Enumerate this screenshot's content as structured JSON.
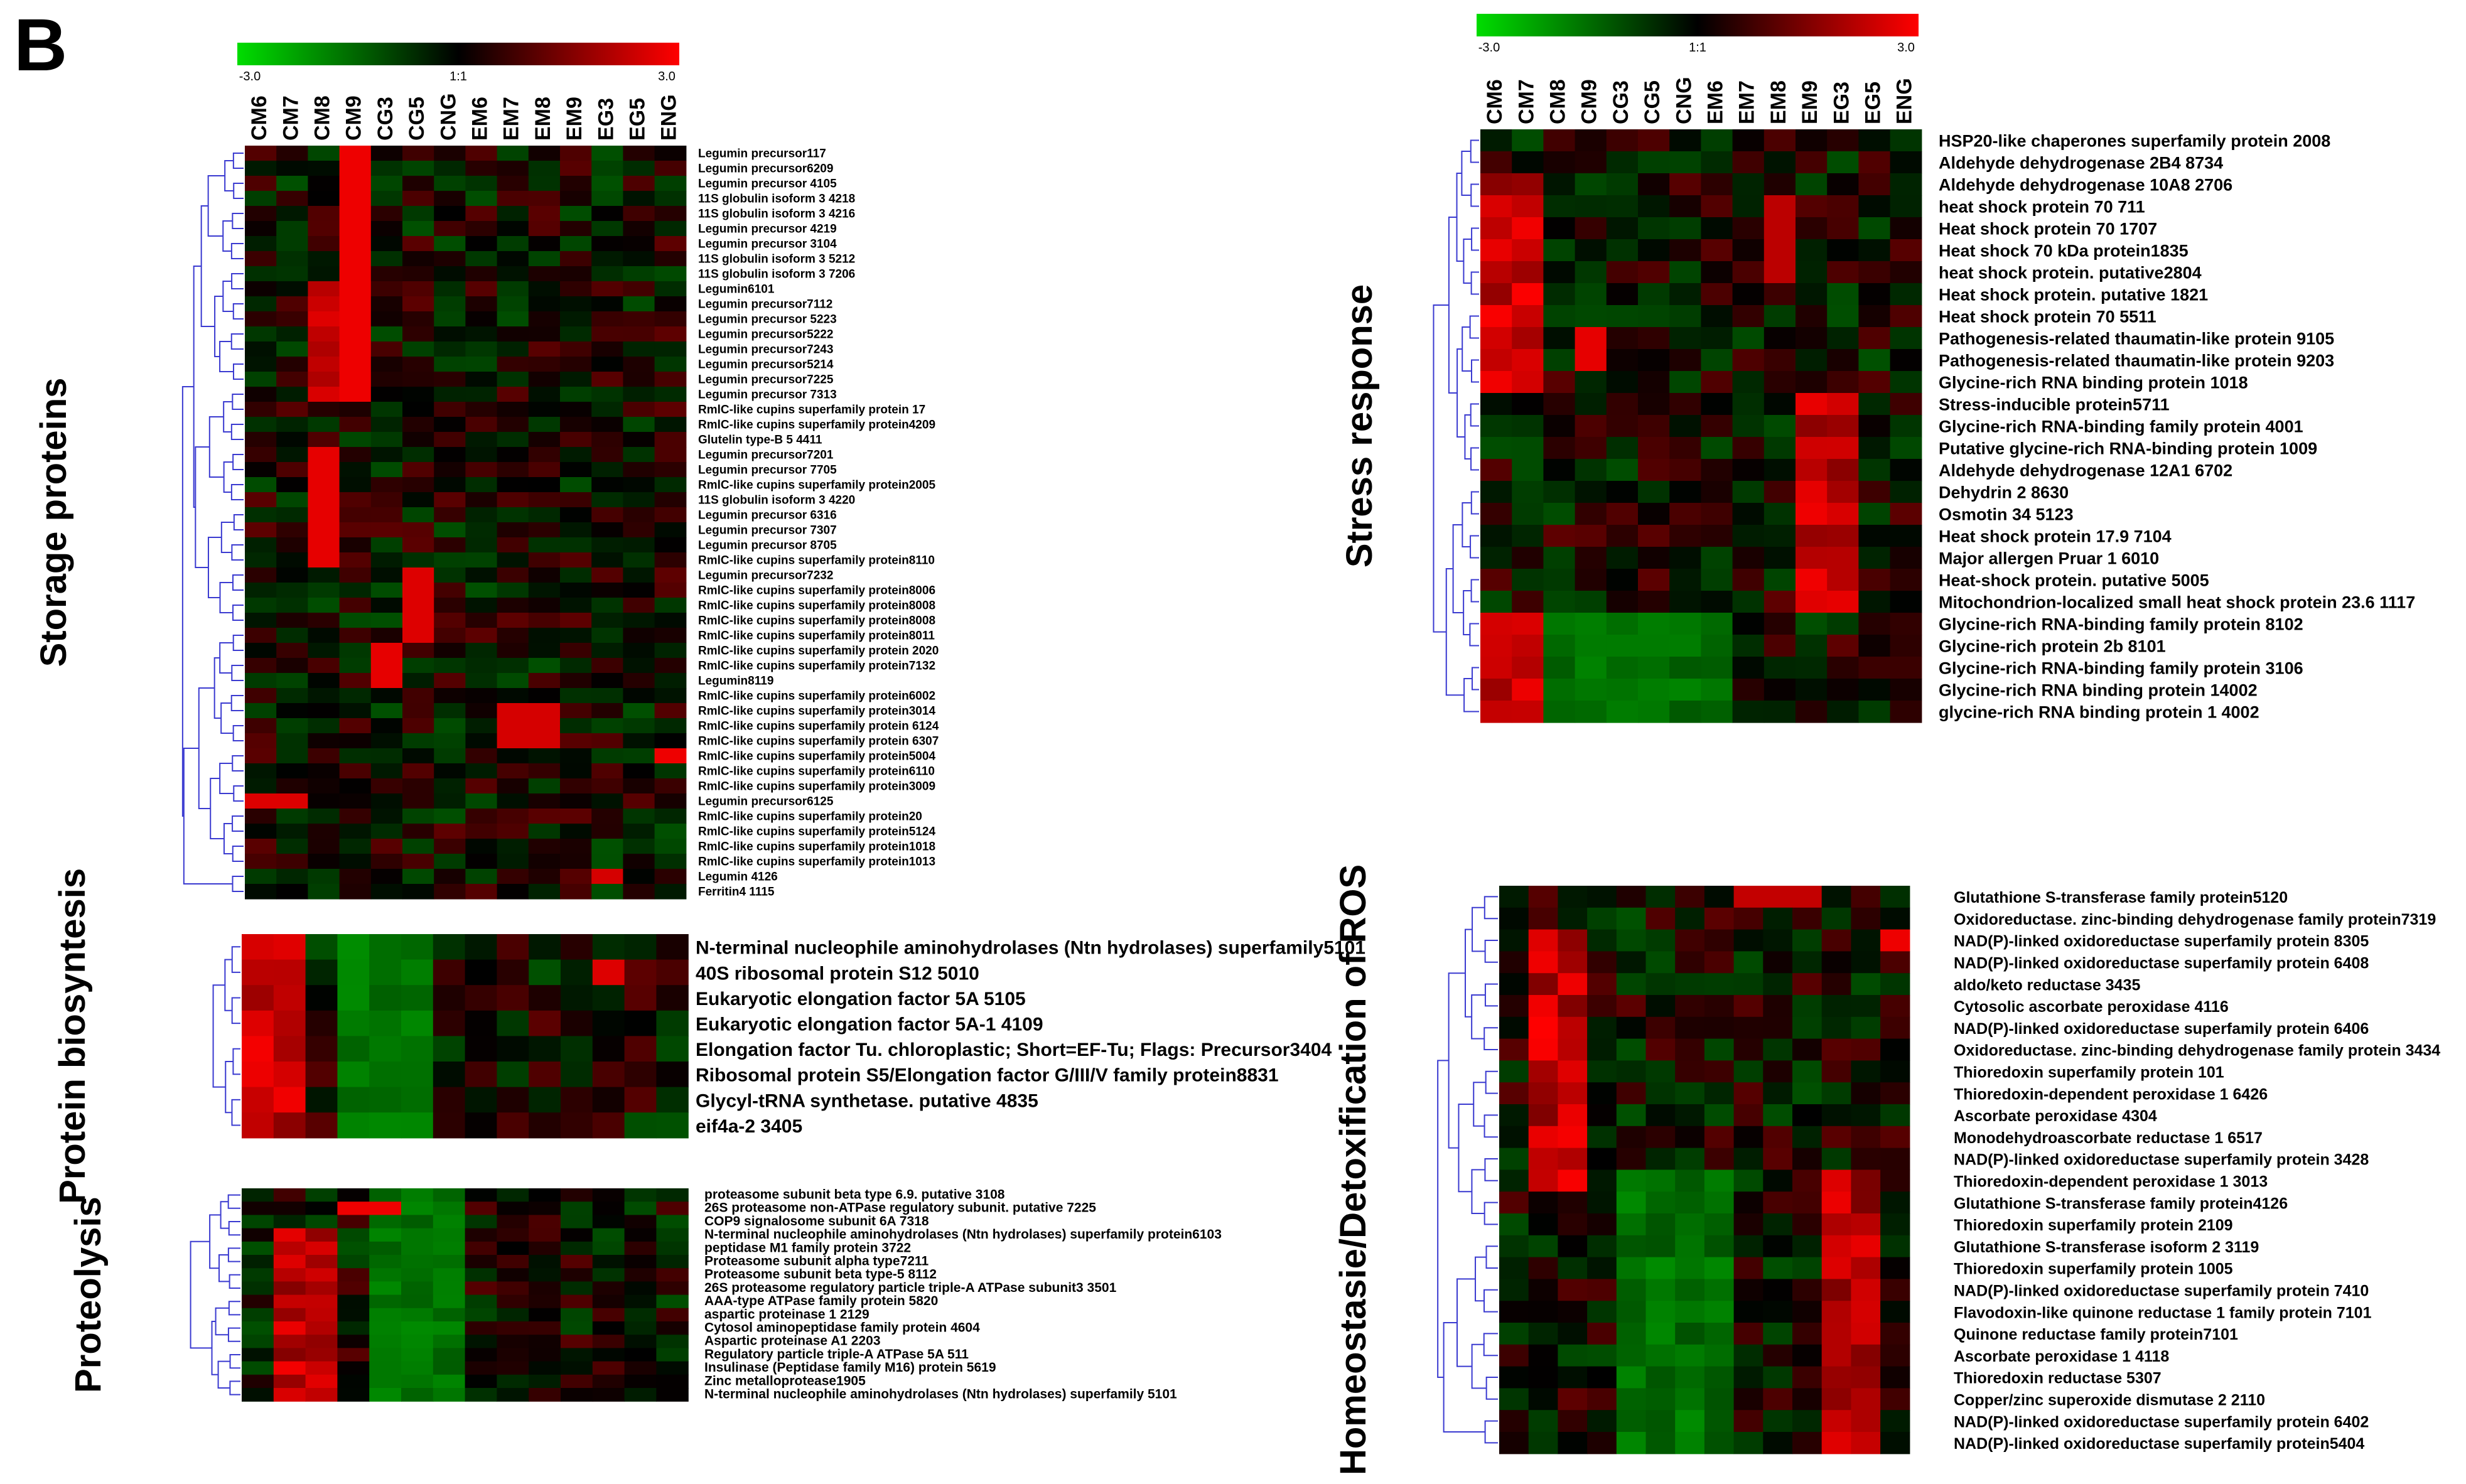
{
  "panel_label": "B",
  "chart_data": {
    "type": "heatmap",
    "colors": {
      "low": "#00dd00",
      "mid": "#000000",
      "high": "#ff0000"
    },
    "color_scale": {
      "min_label": "-3.0",
      "mid_label": "1:1",
      "max_label": "3.0",
      "min": -3.0,
      "max": 3.0
    },
    "conditions": [
      "CM6",
      "CM7",
      "CM8",
      "CM9",
      "CG3",
      "CG5",
      "CNG",
      "EM6",
      "EM7",
      "EM8",
      "EM9",
      "EG3",
      "EG5",
      "ENG"
    ],
    "groups": [
      {
        "name": "Storage proteins",
        "rows": [
          "Legumin precursor117",
          "Legumin precursor6209",
          "Legumin precursor 4105",
          "11S globulin isoform 3 4218",
          "11S globulin isoform 3 4216",
          "Legumin precursor 4219",
          "Legumin precursor 3104",
          "11S globulin isoform 3 5212",
          "11S globulin isoform 3 7206",
          "Legumin6101",
          "Legumin precursor7112",
          "Legumin precursor 5223",
          "Legumin precursor5222",
          "Legumin precursor7243",
          "Legumin precursor5214",
          "Legumin precursor7225",
          "Legumin precursor 7313",
          "RmlC-like cupins superfamily protein 17",
          "RmlC-like cupins superfamily protein4209",
          "Glutelin type-B 5 4411",
          "Legumin precursor7201",
          "Legumin precursor 7705",
          "RmlC-like cupins superfamily protein2005",
          "11S globulin isoform 3 4220",
          "Legumin precursor 6316",
          "Legumin precursor 7307",
          "Legumin precursor 8705",
          "RmlC-like cupins superfamily protein8110",
          "Legumin precursor7232",
          "RmlC-like cupins superfamily protein8006",
          "RmlC-like cupins superfamily protein8008",
          "RmlC-like cupins superfamily protein8008",
          "RmlC-like cupins superfamily protein8011",
          "RmlC-like cupins superfamily protein 2020",
          "RmlC-like cupins superfamily protein7132",
          "Legumin8119",
          "RmlC-like cupins superfamily protein6002",
          "RmlC-like cupins superfamily protein3014",
          "RmlC-like cupins superfamily protein 6124",
          "RmlC-like cupins superfamily protein 6307",
          "RmlC-like cupins superfamily protein5004",
          "RmlC-like cupins superfamily protein6110",
          "RmlC-like cupins superfamily protein3009",
          "Legumin precursor6125",
          "RmlC-like cupins superfamily protein20",
          "RmlC-like cupins superfamily protein5124",
          "RmlC-like cupins superfamily protein1018",
          "RmlC-like cupins superfamily protein1013",
          "Legumin 4126",
          "Ferritin4 1115"
        ]
      },
      {
        "name": "Protein biosyntesis",
        "rows": [
          "N-terminal nucleophile aminohydrolases (Ntn hydrolases) superfamily5101",
          "40S ribosomal protein S12 5010",
          "Eukaryotic elongation factor 5A 5105",
          "Eukaryotic elongation factor 5A-1 4109",
          "Elongation factor Tu. chloroplastic; Short=EF-Tu; Flags: Precursor3404",
          "Ribosomal protein S5/Elongation factor G/III/V family protein8831",
          "Glycyl-tRNA synthetase. putative  4835",
          "eif4a-2  3405"
        ]
      },
      {
        "name": "Proteolysis",
        "rows": [
          "proteasome subunit beta type 6.9. putative 3108",
          "26S proteasome non-ATPase regulatory subunit. putative 7225",
          "COP9 signalosome subunit 6A 7318",
          "N-terminal nucleophile aminohydrolases (Ntn hydrolases) superfamily protein6103",
          "peptidase M1 family protein 3722",
          "Proteasome subunit alpha type7211",
          "Proteasome subunit beta type-5 8112",
          "26S proteasome regulatory particle triple-A ATPase subunit3 3501",
          "AAA-type ATPase family protein 5820",
          "aspartic proteinase 1 2129",
          "Cytosol aminopeptidase family protein 4604",
          "Aspartic proteinase A1 2203",
          "Regulatory particle triple-A ATPase 5A 511",
          "Insulinase (Peptidase family M16) protein 5619",
          "Zinc metalloprotease1905",
          "N-terminal nucleophile aminohydrolases (Ntn hydrolases) superfamily 5101"
        ]
      },
      {
        "name": "Stress response",
        "rows": [
          "HSP20-like chaperones superfamily protein  2008",
          "Aldehyde dehydrogenase 2B4 8734",
          "Aldehyde dehydrogenase 10A8 2706",
          "heat shock protein 70 711",
          "Heat shock protein 70 1707",
          "Heat shock 70 kDa protein1835",
          "heat shock protein. putative2804",
          "Heat shock protein. putative 1821",
          "Heat shock protein 70 5511",
          "Pathogenesis-related thaumatin-like protein 9105",
          "Pathogenesis-related thaumatin-like protein 9203",
          "Glycine-rich RNA binding protein 1018",
          "Stress-inducible protein5711",
          "Glycine-rich RNA-binding family protein 4001",
          "Putative glycine-rich RNA-binding protein 1009",
          "Aldehyde dehydrogenase 12A1 6702",
          "Dehydrin 2 8630",
          "Osmotin 34 5123",
          "Heat shock protein 17.9 7104",
          "Major allergen Pruar 1 6010",
          "Heat-shock protein. putative 5005",
          "Mitochondrion-localized small heat shock protein 23.6 1117",
          "Glycine-rich RNA-binding family protein 8102",
          "Glycine-rich protein 2b 8101",
          "Glycine-rich RNA-binding family protein 3106",
          "Glycine-rich RNA binding protein 14002",
          "glycine-rich RNA binding protein 1 4002"
        ]
      },
      {
        "name": "Homeostasie/Detoxification of ROS",
        "rows": [
          "Glutathione S-transferase family protein5120",
          "Oxidoreductase. zinc-binding dehydrogenase family protein7319",
          "NAD(P)-linked oxidoreductase superfamily protein 8305",
          "NAD(P)-linked oxidoreductase superfamily protein 6408",
          "aldo/keto reductase 3435",
          "Cytosolic ascorbate peroxidase 4116",
          "NAD(P)-linked oxidoreductase superfamily protein 6406",
          "Oxidoreductase. zinc-binding dehydrogenase family protein 3434",
          "Thioredoxin superfamily protein 101",
          "Thioredoxin-dependent peroxidase 1 6426",
          "Ascorbate peroxidase 4304",
          "Monodehydroascorbate reductase 1 6517",
          "NAD(P)-linked oxidoreductase superfamily protein 3428",
          "Thioredoxin-dependent peroxidase 1 3013",
          "Glutathione S-transferase family protein4126",
          "Thioredoxin superfamily protein 2109",
          "Glutathione S-transferase isoform 2 3119",
          "Thioredoxin superfamily protein 1005",
          "NAD(P)-linked oxidoreductase superfamily protein 7410",
          "Flavodoxin-like quinone reductase 1 family protein 7101",
          "Quinone reductase family protein7101",
          "Ascorbate peroxidase 1 4118",
          "Thioredoxin reductase 5307",
          "Copper/zinc superoxide dismutase 2 2110",
          "NAD(P)-linked oxidoreductase superfamily protein 6402",
          "NAD(P)-linked oxidoreductase superfamily protein5404"
        ]
      }
    ]
  }
}
